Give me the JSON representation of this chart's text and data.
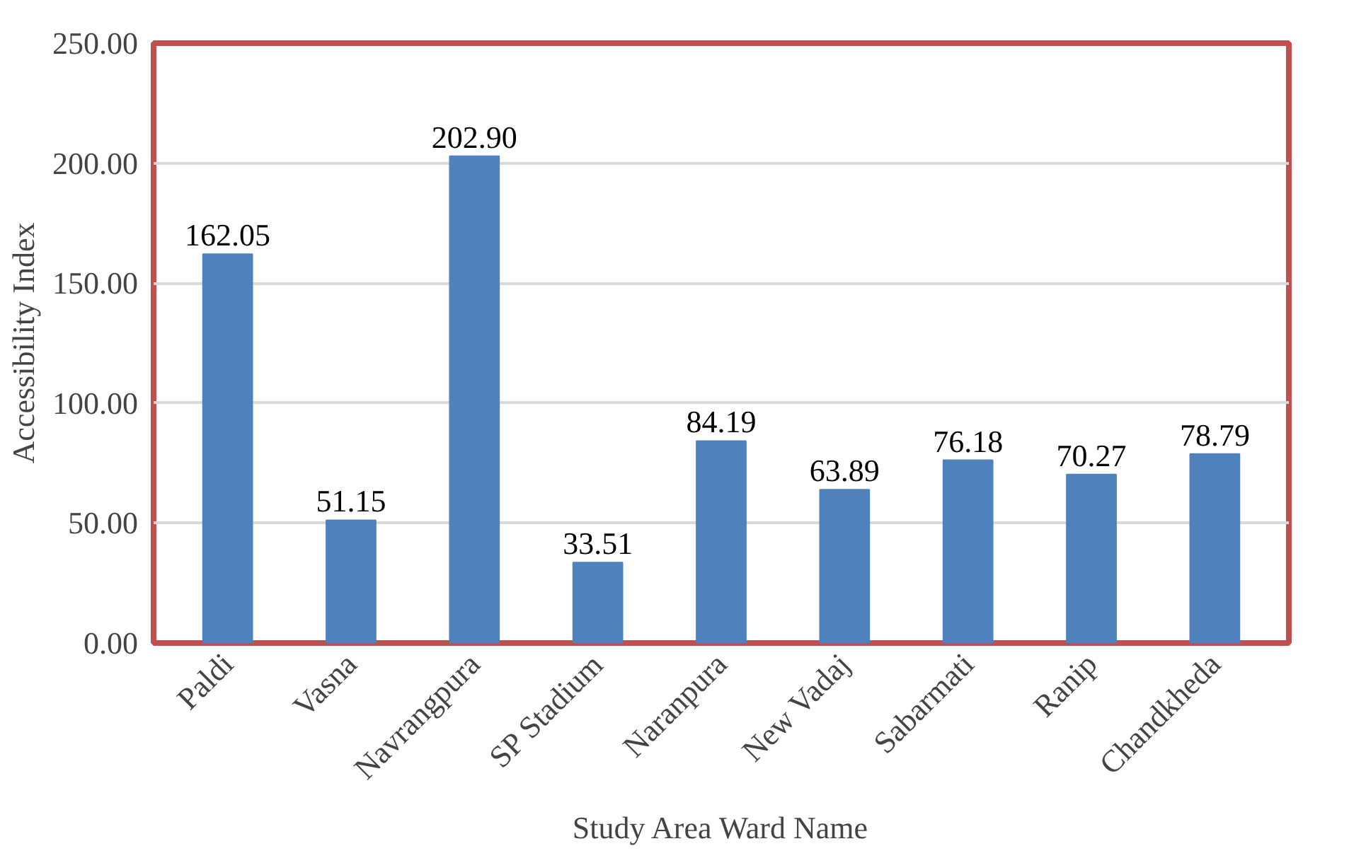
{
  "chart_data": {
    "type": "bar",
    "xlabel": "Study Area Ward Name",
    "ylabel": "Accessibility Index",
    "categories": [
      "Paldi",
      "Vasna",
      "Navrangpura",
      "SP Stadium",
      "Naranpura",
      "New Vadaj",
      "Sabarmati",
      "Ranip",
      "Chandkheda"
    ],
    "values": [
      162.05,
      51.15,
      202.9,
      33.51,
      84.19,
      63.89,
      76.18,
      70.27,
      78.79
    ],
    "value_labels": [
      "162.05",
      "51.15",
      "202.90",
      "33.51",
      "84.19",
      "63.89",
      "76.18",
      "70.27",
      "78.79"
    ],
    "color": "#4f81bd",
    "ylim": [
      0,
      250
    ],
    "yticks": [
      {
        "value": 0,
        "label": "0.00"
      },
      {
        "value": 50,
        "label": "50.00"
      },
      {
        "value": 100,
        "label": "100.00"
      },
      {
        "value": 150,
        "label": "150.00"
      },
      {
        "value": 200,
        "label": "200.00"
      },
      {
        "value": 250,
        "label": "250.00"
      }
    ],
    "grid": "y"
  }
}
